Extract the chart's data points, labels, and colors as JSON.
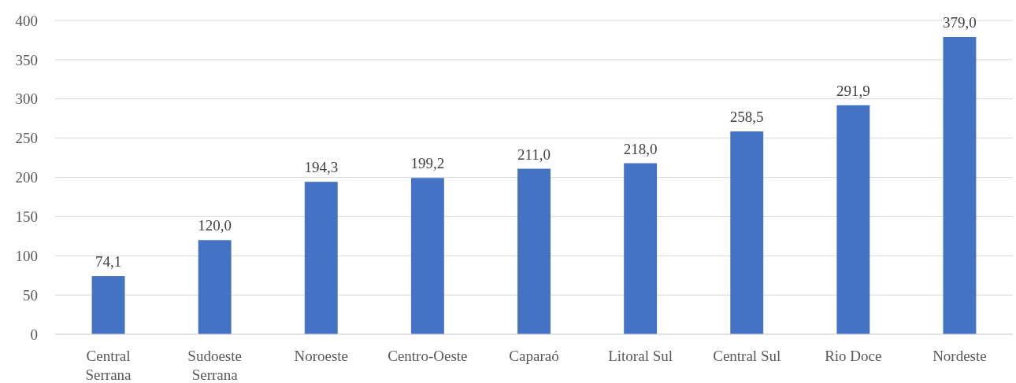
{
  "chart_data": {
    "type": "bar",
    "categories": [
      "Central Serrana",
      "Sudoeste Serrana",
      "Noroeste",
      "Centro-Oeste",
      "Caparaó",
      "Litoral Sul",
      "Central Sul",
      "Rio Doce",
      "Nordeste"
    ],
    "values": [
      74.1,
      120.0,
      194.3,
      199.2,
      211.0,
      218.0,
      258.5,
      291.9,
      379.0
    ],
    "value_labels": [
      "74,1",
      "120,0",
      "194,3",
      "199,2",
      "211,0",
      "218,0",
      "258,5",
      "291,9",
      "379,0"
    ],
    "color": "#4472c4",
    "ylim": [
      0,
      400
    ],
    "yticks": [
      0,
      50,
      100,
      150,
      200,
      250,
      300,
      350,
      400
    ],
    "grid": "y"
  }
}
